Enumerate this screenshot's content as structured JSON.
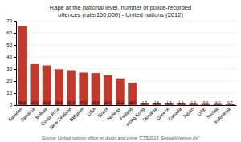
{
  "chart_data": {
    "type": "bar",
    "title": "Rape at the national level, number of police-recorded\noffences (rate/100,000) - United nations (2012)",
    "source": "Source: United nations office on drugs and crime \"CTS2013_SexualViolence.xls\"",
    "categories": [
      "Sweden",
      "Jamaica",
      "Bolivia",
      "Costa Rica",
      "New Zealand",
      "Belgium",
      "USA",
      "Brazil",
      "Norway",
      "Finland",
      "Hong Kong",
      "Slovakia",
      "Greece",
      "Canada",
      "Japan",
      "UAE",
      "Serbia",
      "Indonesia"
    ],
    "values": [
      66.0,
      34.1,
      33.0,
      29.8,
      29.0,
      27.0,
      26.6,
      24.9,
      22.2,
      18.7,
      1.7,
      1.6,
      1.5,
      1.4,
      1.0,
      0.9,
      0.9,
      0.7
    ],
    "value_labels": [
      "66.0",
      "34.1",
      "33.0",
      "29.8",
      "29.0",
      "27.0",
      "26.6",
      "24.9",
      "22.2",
      "18.7",
      "1.7",
      "1.6",
      "1.5",
      "1.4",
      "1.0",
      "0.9",
      "0.9",
      "0.7"
    ],
    "data_labels": true,
    "color": "#c0392b",
    "ylim": [
      0,
      70
    ],
    "yticks": [
      0,
      10,
      20,
      30,
      40,
      50,
      60,
      70
    ],
    "grid": true
  }
}
